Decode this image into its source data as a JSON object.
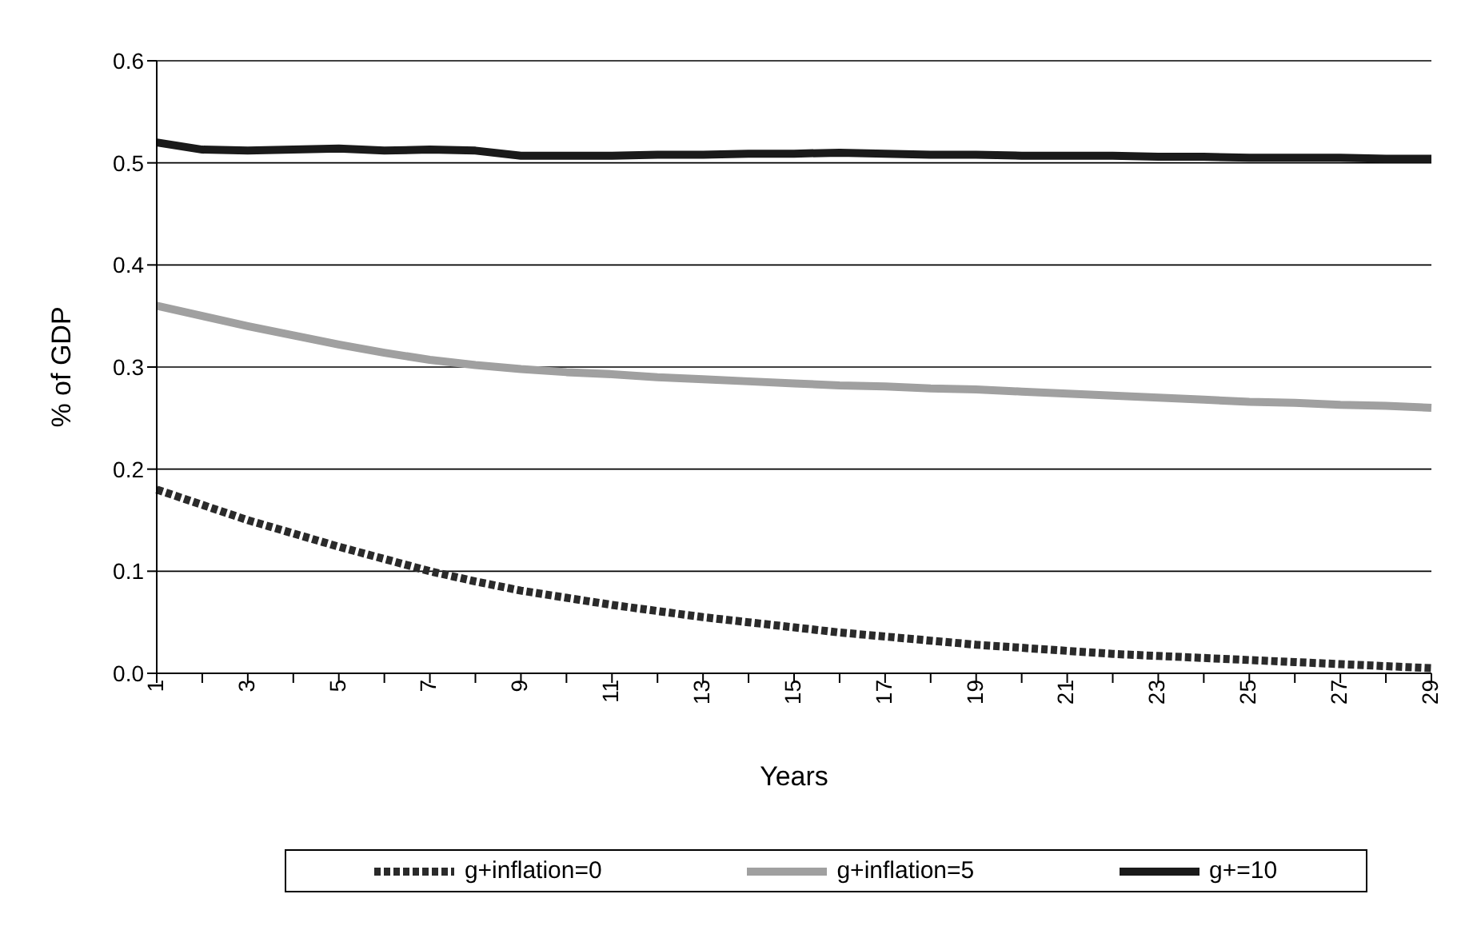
{
  "chart_data": {
    "type": "line",
    "xlabel": "Years",
    "ylabel": "% of GDP",
    "categories": [
      "1",
      null,
      "3",
      null,
      "5",
      null,
      "7",
      null,
      "9",
      null,
      "11",
      null,
      "13",
      null,
      "15",
      null,
      "17",
      null,
      "19",
      null,
      "21",
      null,
      "23",
      null,
      "25",
      null,
      "27",
      null,
      "29"
    ],
    "series": [
      {
        "name": "g+inflation=0",
        "color": "#2a2a2a",
        "line_style": "dotted",
        "values": [
          0.18,
          0.165,
          0.15,
          0.137,
          0.124,
          0.112,
          0.1,
          0.09,
          0.081,
          0.074,
          0.067,
          0.061,
          0.055,
          0.05,
          0.045,
          0.04,
          0.036,
          0.032,
          0.028,
          0.025,
          0.022,
          0.019,
          0.017,
          0.015,
          0.013,
          0.011,
          0.009,
          0.007,
          0.005
        ]
      },
      {
        "name": "g+inflation=5",
        "color": "#a0a0a0",
        "line_style": "solid",
        "values": [
          0.36,
          0.35,
          0.34,
          0.331,
          0.322,
          0.314,
          0.307,
          0.302,
          0.298,
          0.295,
          0.293,
          0.29,
          0.288,
          0.286,
          0.284,
          0.282,
          0.281,
          0.279,
          0.278,
          0.276,
          0.274,
          0.272,
          0.27,
          0.268,
          0.266,
          0.265,
          0.263,
          0.262,
          0.26
        ]
      },
      {
        "name": "g+=10",
        "color": "#1a1a1a",
        "line_style": "solid",
        "values": [
          0.52,
          0.513,
          0.512,
          0.513,
          0.514,
          0.512,
          0.513,
          0.512,
          0.507,
          0.507,
          0.507,
          0.508,
          0.508,
          0.509,
          0.509,
          0.51,
          0.509,
          0.508,
          0.508,
          0.507,
          0.507,
          0.507,
          0.506,
          0.506,
          0.505,
          0.505,
          0.505,
          0.504,
          0.504
        ]
      }
    ],
    "ylim": [
      0,
      0.6
    ],
    "yticks": [
      "0.0",
      0.1,
      0.2,
      0.3,
      0.4,
      0.5,
      0.6
    ],
    "grid": "y",
    "legend": "bottom",
    "marker": "none"
  }
}
